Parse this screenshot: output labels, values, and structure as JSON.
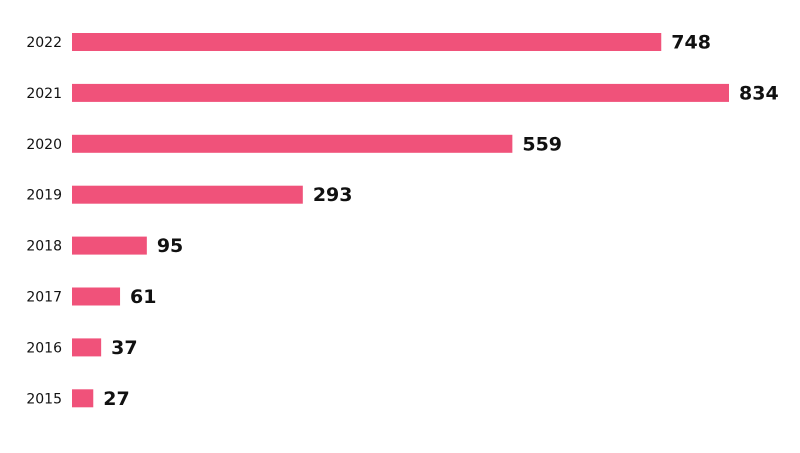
{
  "chart_data": {
    "type": "bar",
    "orientation": "horizontal",
    "categories": [
      "2022",
      "2021",
      "2020",
      "2019",
      "2018",
      "2017",
      "2016",
      "2015"
    ],
    "values": [
      748,
      834,
      559,
      293,
      95,
      61,
      37,
      27
    ],
    "color": "#f0527a"
  }
}
